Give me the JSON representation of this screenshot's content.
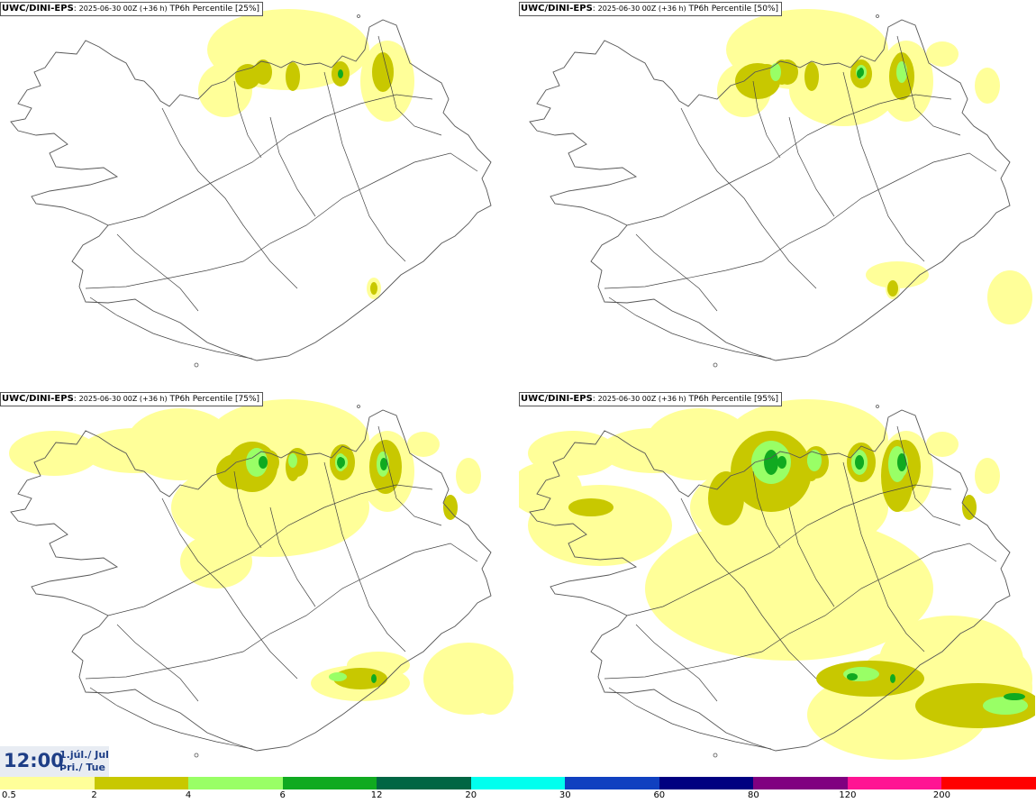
{
  "panels": [
    {
      "model": "UWC/DINI-EPS",
      "run": "2025-06-30 00Z (+36 h)",
      "product": "TP6h Percentile",
      "percentile": "[25%]",
      "intensity": 1
    },
    {
      "model": "UWC/DINI-EPS",
      "run": "2025-06-30 00Z (+36 h)",
      "product": "TP6h Percentile",
      "percentile": "[50%]",
      "intensity": 2
    },
    {
      "model": "UWC/DINI-EPS",
      "run": "2025-06-30 00Z (+36 h)",
      "product": "TP6h Percentile",
      "percentile": "[75%]",
      "intensity": 3
    },
    {
      "model": "UWC/DINI-EPS",
      "run": "2025-06-30 00Z (+36 h)",
      "product": "TP6h Percentile",
      "percentile": "[95%]",
      "intensity": 4
    }
  ],
  "valid_time": {
    "time": "12:00",
    "date_line1": "1.júl./ Jul",
    "date_line2": "Þri./ Tue"
  },
  "legend": {
    "colors": [
      "#ffff99",
      "#c8c800",
      "#99ff66",
      "#10aa20",
      "#006644",
      "#00ffee",
      "#1040c0",
      "#000080",
      "#800080",
      "#ff1493",
      "#ff0000"
    ],
    "labels": [
      "0.5",
      "2",
      "4",
      "6",
      "12",
      "20",
      "30",
      "60",
      "80",
      "120",
      "200"
    ]
  },
  "colors": {
    "land": "#ffffff",
    "coast": "#555555",
    "roads": "#444444",
    "level1": "#ffff99",
    "level2": "#c8c800",
    "level3": "#99ff66",
    "level4": "#10aa20"
  }
}
